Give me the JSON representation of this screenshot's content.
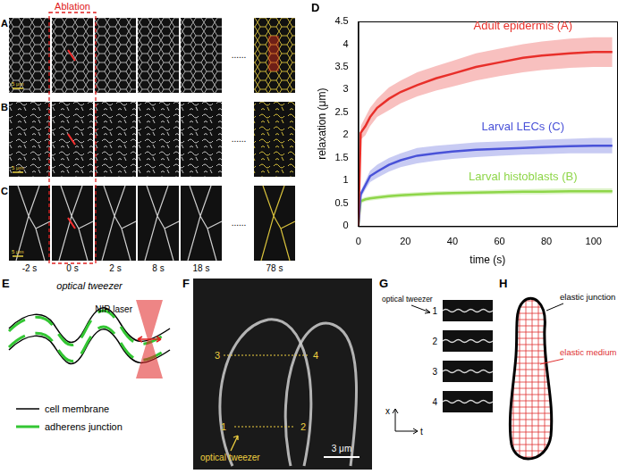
{
  "figure": {
    "ablation_label": "Ablation",
    "rows": [
      {
        "label": "A"
      },
      {
        "label": "B"
      },
      {
        "label": "C"
      }
    ],
    "times": [
      "-2 s",
      "0 s",
      "2 s",
      "8 s",
      "18 s",
      "78 s"
    ],
    "scale_bar": "5 μm",
    "ellipsis": "......"
  },
  "panel_D": {
    "label": "D"
  },
  "chart_data": {
    "type": "line",
    "xlabel": "time (s)",
    "ylabel": "relaxation (μm)",
    "x": [
      0,
      1,
      3,
      5,
      8,
      13,
      18,
      25,
      33,
      40,
      50,
      60,
      70,
      78,
      90,
      100,
      108
    ],
    "xlim": [
      0,
      110
    ],
    "xticks": [
      0,
      20,
      40,
      60,
      80,
      100
    ],
    "ylim": [
      0,
      4.5
    ],
    "yticks": [
      0,
      0.5,
      1,
      1.5,
      2,
      2.5,
      3,
      3.5,
      4,
      4.5
    ],
    "grid": false,
    "series": [
      {
        "name": "Adult epidermis (A)",
        "color": "#e8302a",
        "values": [
          0,
          2.05,
          2.2,
          2.4,
          2.6,
          2.8,
          2.95,
          3.1,
          3.25,
          3.35,
          3.5,
          3.6,
          3.7,
          3.75,
          3.8,
          3.83,
          3.83
        ],
        "lower": [
          0,
          1.9,
          2.0,
          2.2,
          2.4,
          2.55,
          2.7,
          2.85,
          2.98,
          3.07,
          3.2,
          3.3,
          3.38,
          3.43,
          3.48,
          3.5,
          3.5
        ],
        "upper": [
          0,
          2.2,
          2.4,
          2.6,
          2.8,
          3.05,
          3.2,
          3.38,
          3.52,
          3.63,
          3.8,
          3.9,
          4.0,
          4.06,
          4.12,
          4.15,
          4.15
        ]
      },
      {
        "name": "Larval LECs (C)",
        "color": "#4a52d8",
        "values": [
          0,
          0.7,
          0.9,
          1.1,
          1.2,
          1.35,
          1.45,
          1.55,
          1.6,
          1.64,
          1.68,
          1.7,
          1.72,
          1.74,
          1.76,
          1.77,
          1.77
        ],
        "lower": [
          0,
          0.62,
          0.8,
          0.97,
          1.06,
          1.2,
          1.3,
          1.38,
          1.44,
          1.48,
          1.52,
          1.55,
          1.57,
          1.58,
          1.6,
          1.6,
          1.6
        ],
        "upper": [
          0,
          0.78,
          1.0,
          1.22,
          1.35,
          1.5,
          1.6,
          1.72,
          1.77,
          1.8,
          1.84,
          1.86,
          1.88,
          1.9,
          1.92,
          1.94,
          1.94
        ]
      },
      {
        "name": "Larval histoblasts (B)",
        "color": "#8fd64a",
        "values": [
          0,
          0.55,
          0.59,
          0.61,
          0.63,
          0.66,
          0.68,
          0.7,
          0.72,
          0.73,
          0.74,
          0.75,
          0.76,
          0.76,
          0.77,
          0.77,
          0.77
        ],
        "lower": [
          0,
          0.5,
          0.54,
          0.56,
          0.58,
          0.61,
          0.63,
          0.65,
          0.67,
          0.68,
          0.69,
          0.7,
          0.7,
          0.7,
          0.71,
          0.71,
          0.71
        ],
        "upper": [
          0,
          0.6,
          0.64,
          0.66,
          0.68,
          0.71,
          0.73,
          0.75,
          0.77,
          0.78,
          0.79,
          0.8,
          0.81,
          0.82,
          0.83,
          0.83,
          0.83
        ]
      }
    ]
  },
  "panel_E": {
    "label": "E",
    "title": "optical tweezer",
    "laser": "NIR laser",
    "legend": [
      {
        "text": "cell membrane",
        "color": "#000000"
      },
      {
        "text": "adherens junction",
        "color": "#33c633"
      }
    ]
  },
  "panel_F": {
    "label": "F",
    "points": [
      "1",
      "2",
      "3",
      "4"
    ],
    "pointer": "optical tweezer",
    "scale_bar": "3 μm"
  },
  "panel_G": {
    "label": "G",
    "pointer": "optical tweezer",
    "rows": [
      "1",
      "2",
      "3",
      "4"
    ],
    "axes": [
      "x",
      "t"
    ]
  },
  "panel_H": {
    "label": "H",
    "junction": "elastic junction",
    "medium": "elastic medium"
  }
}
